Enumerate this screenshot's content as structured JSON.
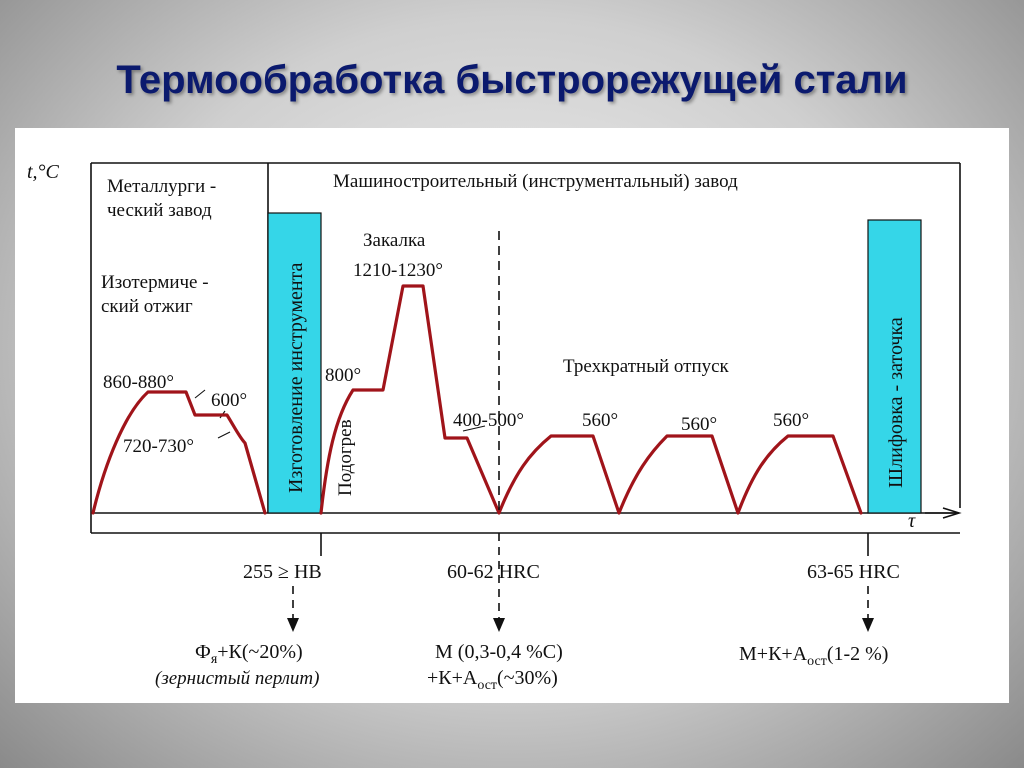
{
  "title": "Термообработка быстрорежущей стали",
  "axis": {
    "y_label": "t,°C",
    "x_label": "τ"
  },
  "headers": {
    "metallurgical_line1": "Металлурги -",
    "metallurgical_line2": "ческий завод",
    "machine_building": "Машиностроительный (инструментальный) завод"
  },
  "stages": {
    "isothermal_line1": "Изотермиче -",
    "isothermal_line2": "ский отжиг",
    "tool_manufacturing": "Изготовление инструмента",
    "hardening": "Закалка",
    "preheating": "Подогрев",
    "triple_tempering": "Трехкратный отпуск",
    "grinding": "Шлифовка - заточка"
  },
  "temperatures": {
    "t_860_880": "860-880°",
    "t_600": "600°",
    "t_720_730": "720-730°",
    "t_800": "800°",
    "t_1210_1230": "1210-1230°",
    "t_400_500": "400-500°",
    "t_560_a": "560°",
    "t_560_b": "560°",
    "t_560_c": "560°"
  },
  "hardness": {
    "hb": "255 ≥ НВ",
    "hrc_60_62": "60-62 HRC",
    "hrc_63_65": "63-65 HRC"
  },
  "structures": {
    "s1_line1": "Ф",
    "s1_sub": "я",
    "s1_rest": "+К(~20%)",
    "s1_line2": "(зернистый перлит)",
    "s2_line1": "М (0,3-0,4 %С)",
    "s2_pre": "+К+А",
    "s2_sub": "ост",
    "s2_rest": "(~30%)",
    "s3_pre": "М+К+А",
    "s3_sub": "ост",
    "s3_rest": "(1-2 %)"
  },
  "colors": {
    "curve": "#a0141a",
    "band_fill": "#35d6e8",
    "title": "#0b1a6e"
  }
}
